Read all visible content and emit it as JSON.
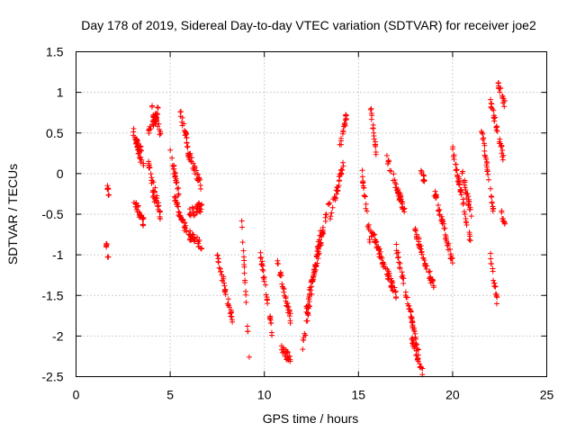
{
  "chart_data": {
    "type": "scatter",
    "title": "Day 178 of 2019, Sidereal Day-to-day VTEC variation (SDTVAR) for receiver joe2",
    "xlabel": "GPS time / hours",
    "ylabel": "SDTVAR / TECUs",
    "xlim": [
      0,
      25
    ],
    "ylim": [
      -2.5,
      1.5
    ],
    "xticks": [
      0,
      5,
      10,
      15,
      20,
      25
    ],
    "yticks": [
      -2.5,
      -2,
      -1.5,
      -1,
      -0.5,
      0,
      0.5,
      1,
      1.5
    ],
    "grid": true,
    "marker": "plus",
    "color": "#ff0000",
    "series": [
      {
        "name": "SDTVAR",
        "segments": [
          {
            "x0": 1.6,
            "x1": 1.75,
            "y0": -0.1,
            "y1": -0.25
          },
          {
            "x0": 1.6,
            "x1": 1.75,
            "y0": -0.85,
            "y1": -1.1
          },
          {
            "x0": 3.0,
            "x1": 3.6,
            "y0": 0.55,
            "y1": 0.05
          },
          {
            "x0": 3.1,
            "x1": 3.5,
            "y0": 0.45,
            "y1": 0.25
          },
          {
            "x0": 3.0,
            "x1": 3.6,
            "y0": -0.3,
            "y1": -0.6
          },
          {
            "x0": 3.8,
            "x1": 4.4,
            "y0": 0.45,
            "y1": 0.8
          },
          {
            "x0": 4.0,
            "x1": 4.5,
            "y0": 0.8,
            "y1": 0.5
          },
          {
            "x0": 3.8,
            "x1": 4.5,
            "y0": 0.2,
            "y1": -0.55
          },
          {
            "x0": 4.0,
            "x1": 4.2,
            "y0": -0.1,
            "y1": -0.4
          },
          {
            "x0": 5.0,
            "x1": 5.5,
            "y0": 0.3,
            "y1": -0.3
          },
          {
            "x0": 5.5,
            "x1": 5.9,
            "y0": 0.8,
            "y1": 0.4
          },
          {
            "x0": 5.9,
            "x1": 6.7,
            "y0": 0.3,
            "y1": -0.2
          },
          {
            "x0": 5.2,
            "x1": 6.0,
            "y0": -0.3,
            "y1": -0.8
          },
          {
            "x0": 6.0,
            "x1": 6.7,
            "y0": -0.75,
            "y1": -0.9
          },
          {
            "x0": 6.0,
            "x1": 6.7,
            "y0": -0.5,
            "y1": -0.4
          },
          {
            "x0": 7.5,
            "x1": 8.3,
            "y0": -1.0,
            "y1": -1.8
          },
          {
            "x0": 8.8,
            "x1": 9.2,
            "y0": -0.6,
            "y1": -2.25
          },
          {
            "x0": 9.8,
            "x1": 10.5,
            "y0": -1.0,
            "y1": -2.1
          },
          {
            "x0": 10.7,
            "x1": 11.4,
            "y0": -1.1,
            "y1": -1.8
          },
          {
            "x0": 10.9,
            "x1": 11.4,
            "y0": -2.15,
            "y1": -2.3
          },
          {
            "x0": 12.0,
            "x1": 13.0,
            "y0": -2.2,
            "y1": -0.7
          },
          {
            "x0": 12.2,
            "x1": 13.5,
            "y0": -1.7,
            "y1": -0.3
          },
          {
            "x0": 13.5,
            "x1": 14.2,
            "y0": -0.5,
            "y1": 0.1
          },
          {
            "x0": 14.0,
            "x1": 14.4,
            "y0": 0.3,
            "y1": 0.77
          },
          {
            "x0": 15.2,
            "x1": 15.6,
            "y0": 0.0,
            "y1": -0.8
          },
          {
            "x0": 15.6,
            "x1": 16.0,
            "y0": 0.9,
            "y1": 0.15
          },
          {
            "x0": 15.5,
            "x1": 17.0,
            "y0": -0.6,
            "y1": -1.5
          },
          {
            "x0": 16.5,
            "x1": 17.5,
            "y0": 0.2,
            "y1": -0.5
          },
          {
            "x0": 17.0,
            "x1": 18.2,
            "y0": -0.9,
            "y1": -2.2
          },
          {
            "x0": 17.8,
            "x1": 18.4,
            "y0": -2.0,
            "y1": -2.45
          },
          {
            "x0": 18.0,
            "x1": 19.0,
            "y0": -0.7,
            "y1": -1.4
          },
          {
            "x0": 18.3,
            "x1": 18.5,
            "y0": 0.05,
            "y1": -0.1
          },
          {
            "x0": 19.0,
            "x1": 20.0,
            "y0": -0.2,
            "y1": -1.1
          },
          {
            "x0": 20.0,
            "x1": 21.0,
            "y0": 0.3,
            "y1": -0.9
          },
          {
            "x0": 20.5,
            "x1": 21.0,
            "y0": 0.0,
            "y1": -0.5
          },
          {
            "x0": 21.5,
            "x1": 22.2,
            "y0": 0.6,
            "y1": -0.5
          },
          {
            "x0": 22.0,
            "x1": 22.7,
            "y0": 0.9,
            "y1": 0.2
          },
          {
            "x0": 22.4,
            "x1": 22.8,
            "y0": 1.1,
            "y1": 0.85
          },
          {
            "x0": 22.0,
            "x1": 22.4,
            "y0": -1.0,
            "y1": -1.65
          },
          {
            "x0": 22.6,
            "x1": 22.8,
            "y0": -0.5,
            "y1": -0.6
          }
        ]
      }
    ]
  }
}
